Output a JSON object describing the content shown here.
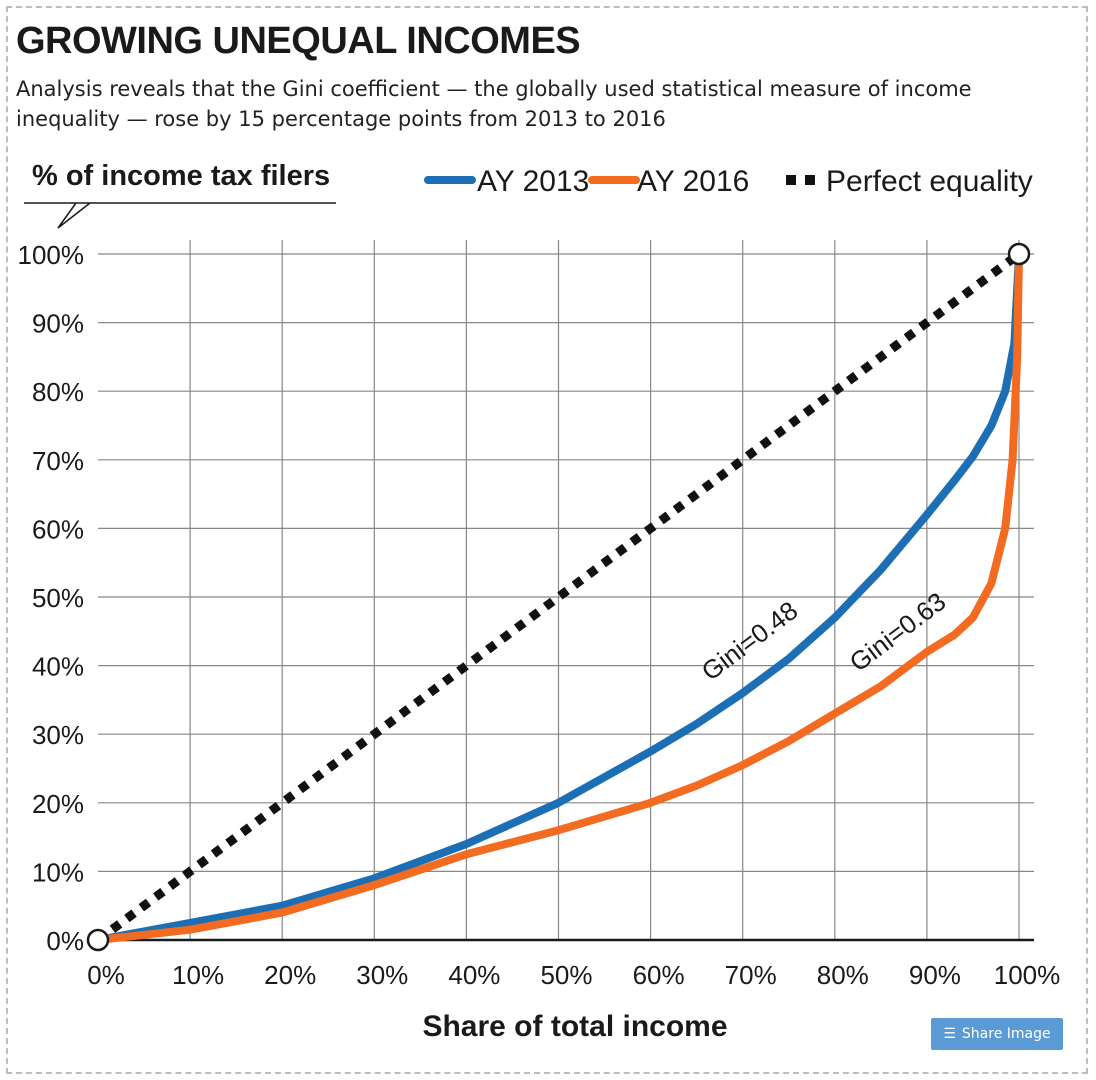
{
  "header": {
    "title": "GROWING UNEQUAL INCOMES",
    "subtitle": "Analysis reveals that the Gini coefficient — the globally used statistical measure of income inequality — rose by 15 percentage points from 2013 to 2016"
  },
  "share_button": {
    "label": "Share Image",
    "icon": "layers-icon"
  },
  "colors": {
    "ay2013": "#1c6fb5",
    "ay2016": "#f26b21",
    "equality": "#111111",
    "grid": "#888888"
  },
  "chart_data": {
    "type": "line",
    "title": "GROWING UNEQUAL INCOMES",
    "xlabel": "Share of total income",
    "ylabel": "% of income tax filers",
    "xlim": [
      0,
      100
    ],
    "ylim": [
      0,
      100
    ],
    "grid": true,
    "legend_position": "top-right",
    "x_ticks": [
      "0%",
      "10%",
      "20%",
      "30%",
      "40%",
      "50%",
      "60%",
      "70%",
      "80%",
      "90%",
      "100%"
    ],
    "y_ticks": [
      "0%",
      "10%",
      "20%",
      "30%",
      "40%",
      "50%",
      "60%",
      "70%",
      "80%",
      "90%",
      "100%"
    ],
    "legend": [
      "AY 2013",
      "AY 2016",
      "Perfect equality"
    ],
    "series": [
      {
        "name": "AY 2013",
        "x": [
          0,
          10,
          20,
          30,
          40,
          50,
          60,
          65,
          70,
          75,
          80,
          85,
          90,
          93,
          95,
          97,
          98.5,
          99.5,
          100
        ],
        "y": [
          0,
          2.5,
          5,
          9,
          14,
          20,
          27.5,
          31.5,
          36,
          41,
          47,
          54,
          62,
          67,
          70.5,
          75,
          80,
          87,
          100
        ]
      },
      {
        "name": "AY 2016",
        "x": [
          0,
          10,
          20,
          30,
          40,
          50,
          60,
          65,
          70,
          75,
          80,
          85,
          88,
          90,
          93,
          95,
          97,
          98.5,
          99.3,
          99.8,
          100
        ],
        "y": [
          0,
          1.5,
          4,
          8,
          12.5,
          16,
          20,
          22.5,
          25.5,
          29,
          33,
          37,
          40,
          42,
          44.5,
          47,
          52,
          60,
          70,
          85,
          100
        ]
      },
      {
        "name": "Perfect equality",
        "x": [
          0,
          100
        ],
        "y": [
          0,
          100
        ]
      }
    ],
    "annotations": [
      {
        "text": "Gini=0.48",
        "series": "AY 2013"
      },
      {
        "text": "Gini=0.63",
        "series": "AY 2016"
      }
    ]
  }
}
